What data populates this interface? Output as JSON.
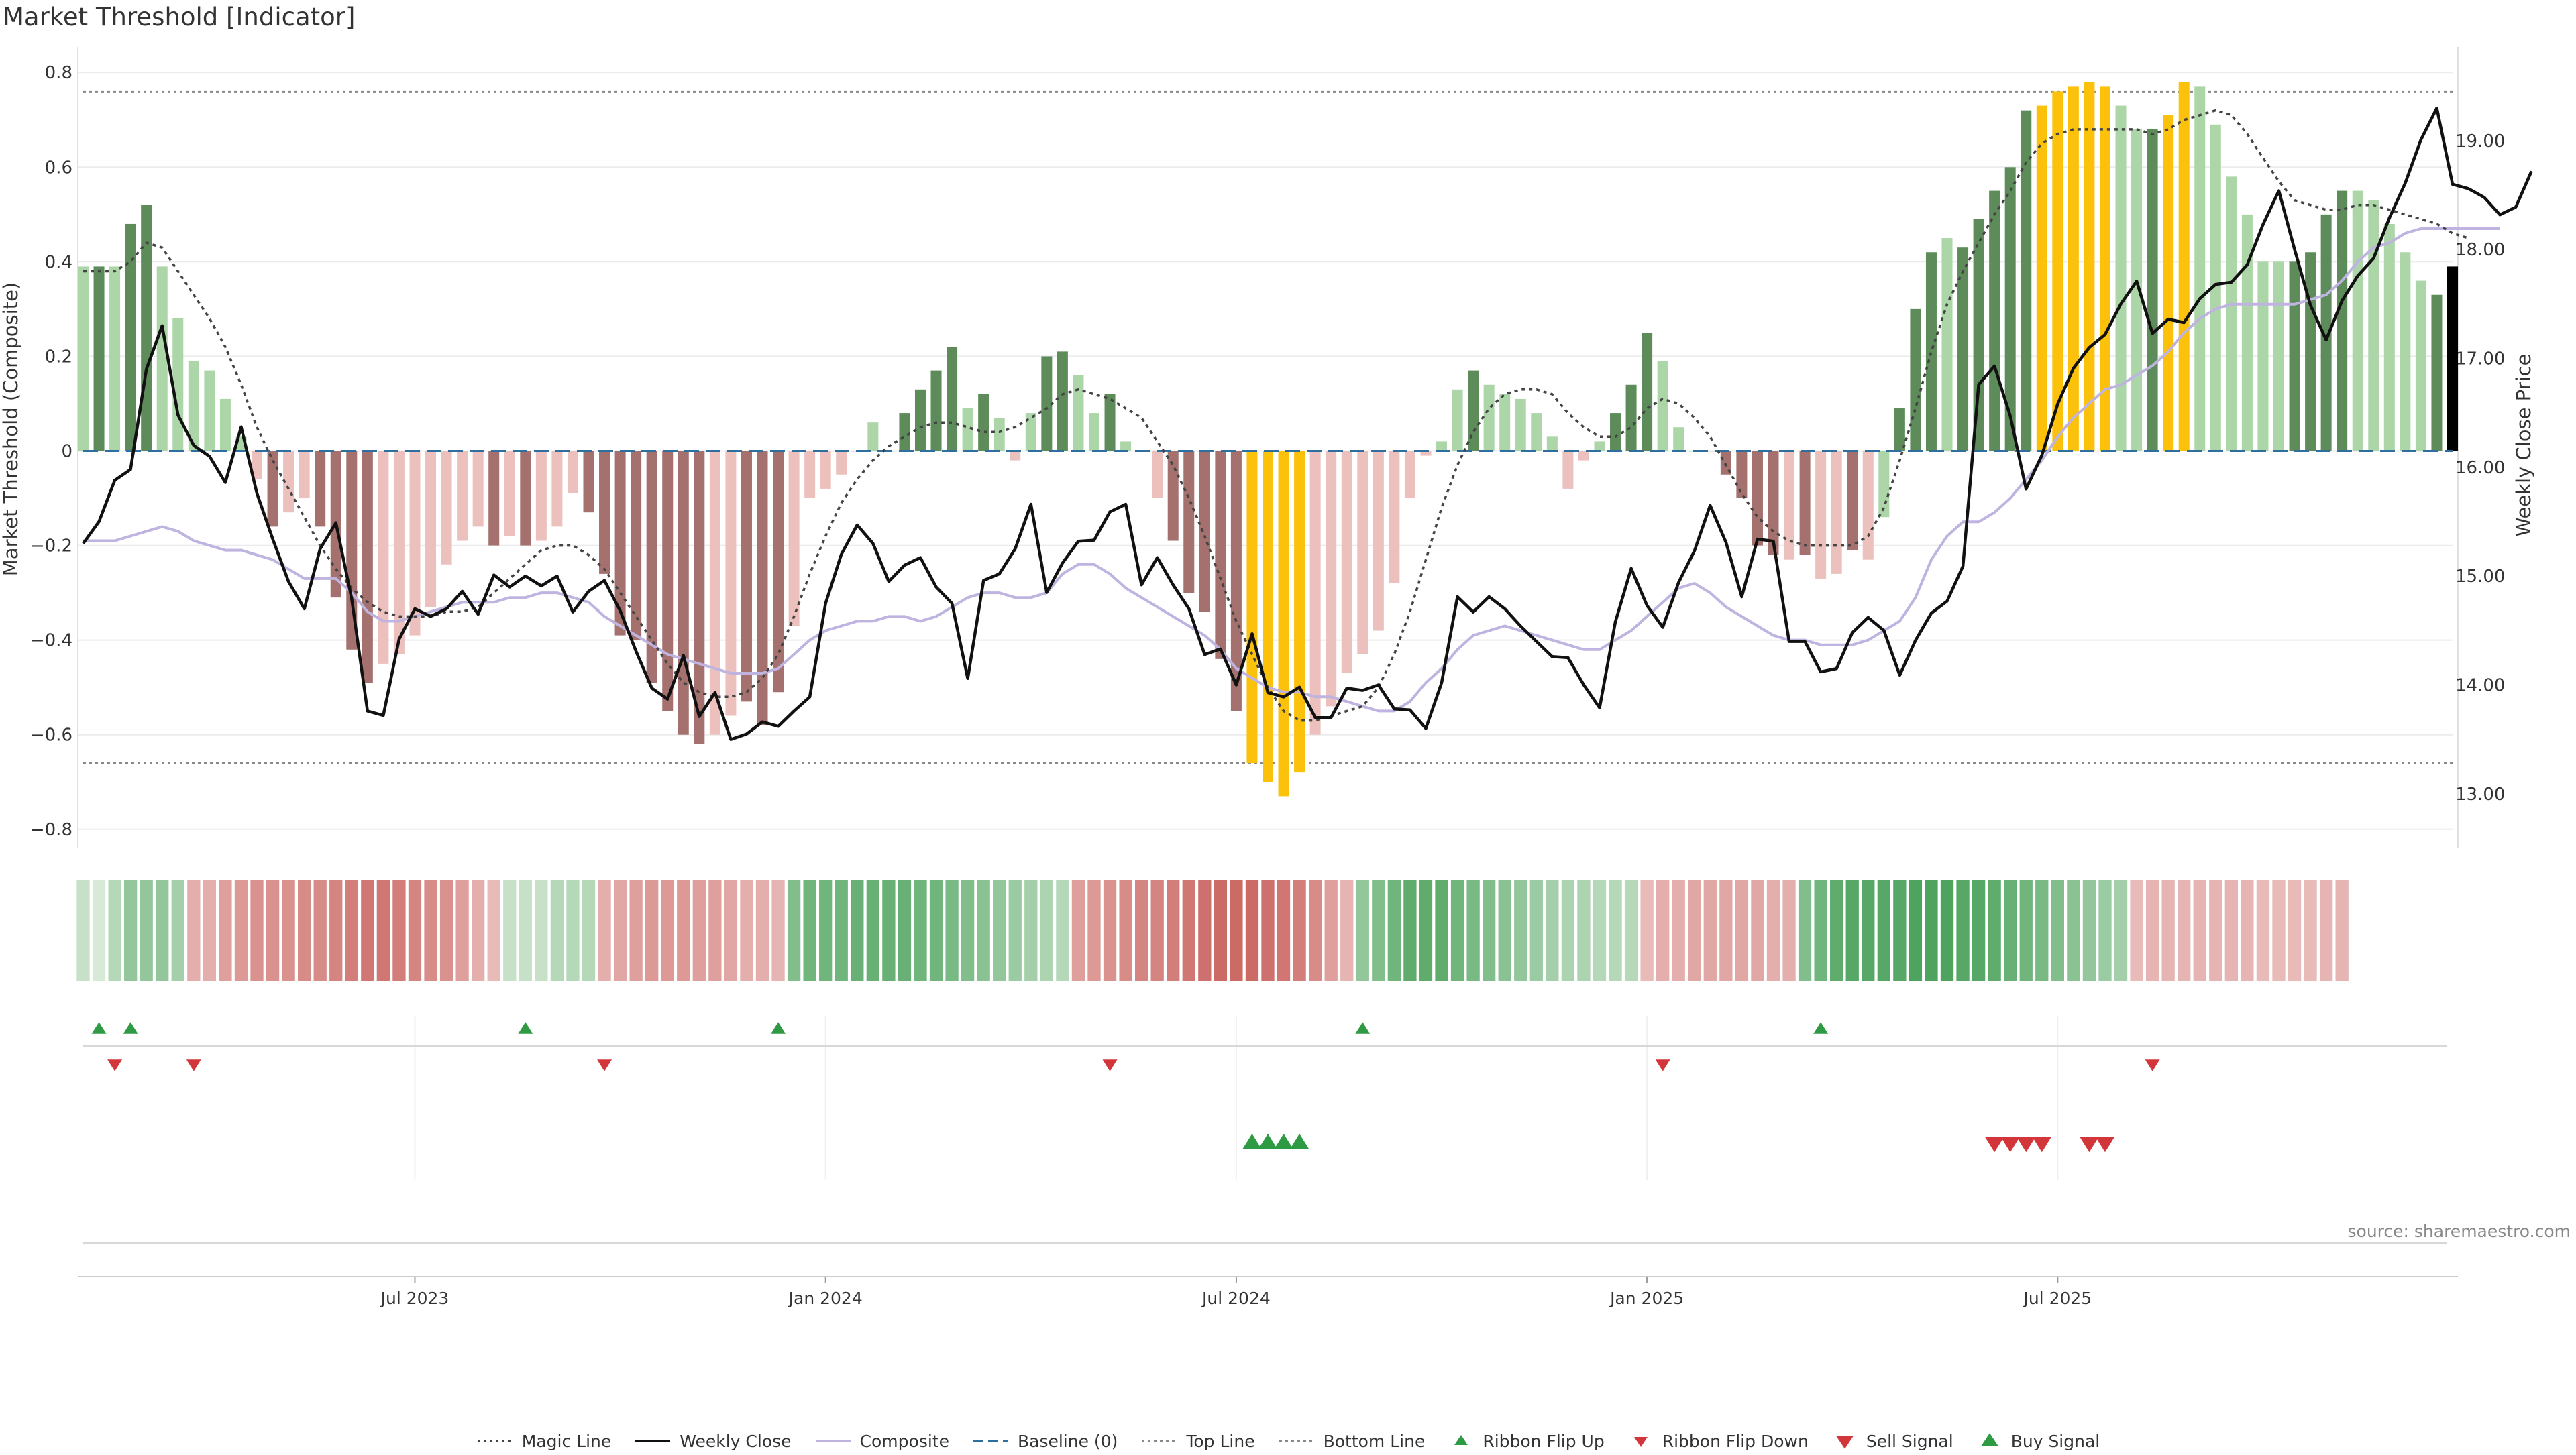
{
  "title": "Market Threshold [Indicator]",
  "source": "source: sharemaestro.com",
  "colors": {
    "strong_pos": "#5d8c5a",
    "weak_pos": "#acd5a8",
    "strong_neg": "#a4716e",
    "weak_neg": "#ecc1bd",
    "extreme": "#fbc10b",
    "magic": "#444444",
    "close": "#111111",
    "composite": "#bfb3e0",
    "baseline": "#2f6fa0",
    "threshold": "#888888",
    "flip_up": "#2e9a44",
    "flip_down": "#d3363a"
  },
  "legend": [
    {
      "key": "magic",
      "label": "Magic Line",
      "icon": "dotted-line"
    },
    {
      "key": "close",
      "label": "Weekly Close",
      "icon": "solid-line"
    },
    {
      "key": "composite",
      "label": "Composite",
      "icon": "solid-line"
    },
    {
      "key": "baseline",
      "label": "Baseline (0)",
      "icon": "dashed-line"
    },
    {
      "key": "top",
      "label": "Top Line",
      "icon": "dotted-line"
    },
    {
      "key": "bottom",
      "label": "Bottom Line",
      "icon": "dotted-line"
    },
    {
      "key": "flip_up",
      "label": "Ribbon Flip Up",
      "icon": "triangle-up"
    },
    {
      "key": "flip_down",
      "label": "Ribbon Flip Down",
      "icon": "triangle-down"
    },
    {
      "key": "sell",
      "label": "Sell Signal",
      "icon": "triangle-down"
    },
    {
      "key": "buy",
      "label": "Buy Signal",
      "icon": "triangle-up"
    }
  ],
  "chart_data": {
    "type": "bar",
    "x_axis": {
      "tick_labels": [
        "Jul 2023",
        "Jan 2024",
        "Jul 2024",
        "Jan 2025",
        "Jul 2025"
      ],
      "tick_week_index": [
        21,
        47,
        73,
        99,
        125
      ]
    },
    "y_left": {
      "label": "Market Threshold (Composite)",
      "ticks": [
        "0.8",
        "0.6",
        "0.4",
        "0.2",
        "0",
        "−0.2",
        "−0.4",
        "−0.6",
        "−0.8"
      ],
      "range": [
        -0.84,
        0.84
      ]
    },
    "y_right": {
      "label": "Weekly Close Price",
      "ticks": [
        "19.00",
        "18.00",
        "17.00",
        "16.00",
        "15.00",
        "14.00",
        "13.00"
      ],
      "range": [
        12.5,
        19.8
      ]
    },
    "top_line": 0.76,
    "bottom_line": -0.66,
    "baseline": 0,
    "bars": [
      0.39,
      0.39,
      0.39,
      0.48,
      0.52,
      0.39,
      0.28,
      0.19,
      0.17,
      0.11,
      0.03,
      -0.06,
      -0.16,
      -0.13,
      -0.1,
      -0.16,
      -0.31,
      -0.42,
      -0.49,
      -0.45,
      -0.43,
      -0.39,
      -0.33,
      -0.24,
      -0.19,
      -0.16,
      -0.2,
      -0.18,
      -0.2,
      -0.19,
      -0.16,
      -0.09,
      -0.13,
      -0.26,
      -0.39,
      -0.4,
      -0.49,
      -0.55,
      -0.6,
      -0.62,
      -0.6,
      -0.56,
      -0.53,
      -0.58,
      -0.51,
      -0.37,
      -0.1,
      -0.08,
      -0.05,
      0.0,
      0.06,
      0.0,
      0.08,
      0.13,
      0.17,
      0.22,
      0.09,
      0.12,
      0.07,
      -0.02,
      0.08,
      0.2,
      0.21,
      0.16,
      0.08,
      0.12,
      0.02,
      0.0,
      -0.1,
      -0.19,
      -0.3,
      -0.34,
      -0.44,
      -0.55,
      -0.66,
      -0.7,
      -0.73,
      -0.68,
      -0.6,
      -0.54,
      -0.47,
      -0.43,
      -0.38,
      -0.28,
      -0.1,
      -0.01,
      0.02,
      0.13,
      0.17,
      0.14,
      0.12,
      0.11,
      0.08,
      0.03,
      -0.08,
      -0.02,
      0.02,
      0.08,
      0.14,
      0.25,
      0.19,
      0.05,
      0.0,
      0.0,
      -0.05,
      -0.1,
      -0.2,
      -0.22,
      -0.23,
      -0.22,
      -0.27,
      -0.26,
      -0.21,
      -0.23,
      -0.14,
      0.09,
      0.3,
      0.42,
      0.45,
      0.43,
      0.49,
      0.55,
      0.6,
      0.72,
      0.73,
      0.76,
      0.77,
      0.78,
      0.77,
      0.73,
      0.68,
      0.68,
      0.71,
      0.78,
      0.77,
      0.69,
      0.58,
      0.5,
      0.4,
      0.4,
      0.4,
      0.42,
      0.5,
      0.55,
      0.55,
      0.53,
      0.48,
      0.42,
      0.36,
      0.33,
      0.39
    ],
    "bar_class": [
      "w",
      "s",
      "w",
      "s",
      "s",
      "w",
      "w",
      "w",
      "w",
      "w",
      "w",
      "wn",
      "sn",
      "wn",
      "wn",
      "sn",
      "sn",
      "sn",
      "sn",
      "wn",
      "wn",
      "wn",
      "wn",
      "wn",
      "wn",
      "wn",
      "sn",
      "wn",
      "sn",
      "wn",
      "wn",
      "wn",
      "sn",
      "sn",
      "sn",
      "sn",
      "sn",
      "sn",
      "sn",
      "sn",
      "wn",
      "wn",
      "sn",
      "sn",
      "sn",
      "wn",
      "wn",
      "wn",
      "wn",
      "wn",
      "w",
      "w",
      "s",
      "s",
      "s",
      "s",
      "w",
      "s",
      "w",
      "wn",
      "w",
      "s",
      "s",
      "w",
      "w",
      "s",
      "w",
      "w",
      "wn",
      "sn",
      "sn",
      "sn",
      "sn",
      "sn",
      "x",
      "x",
      "x",
      "x",
      "wn",
      "wn",
      "wn",
      "wn",
      "wn",
      "wn",
      "wn",
      "wn",
      "w",
      "w",
      "s",
      "w",
      "w",
      "w",
      "w",
      "w",
      "wn",
      "wn",
      "w",
      "s",
      "s",
      "s",
      "w",
      "w",
      "w",
      "wn",
      "sn",
      "sn",
      "sn",
      "sn",
      "wn",
      "sn",
      "wn",
      "wn",
      "sn",
      "wn",
      "w",
      "s",
      "s",
      "s",
      "w",
      "s",
      "s",
      "s",
      "s",
      "s",
      "x",
      "x",
      "x",
      "x",
      "x",
      "w",
      "w",
      "s",
      "x",
      "x",
      "w",
      "w",
      "w",
      "w",
      "w",
      "w",
      "s",
      "s",
      "s",
      "s",
      "w",
      "w",
      "w",
      "w",
      "w",
      "s"
    ],
    "series": [
      {
        "name": "Magic Line",
        "values": [
          0.38,
          0.38,
          0.38,
          0.4,
          0.44,
          0.43,
          0.38,
          0.33,
          0.28,
          0.22,
          0.14,
          0.05,
          -0.02,
          -0.08,
          -0.14,
          -0.2,
          -0.25,
          -0.29,
          -0.32,
          -0.34,
          -0.35,
          -0.35,
          -0.35,
          -0.34,
          -0.34,
          -0.33,
          -0.3,
          -0.27,
          -0.24,
          -0.21,
          -0.2,
          -0.2,
          -0.22,
          -0.25,
          -0.3,
          -0.35,
          -0.4,
          -0.45,
          -0.49,
          -0.51,
          -0.52,
          -0.52,
          -0.51,
          -0.48,
          -0.43,
          -0.35,
          -0.26,
          -0.18,
          -0.11,
          -0.06,
          -0.02,
          0.01,
          0.03,
          0.05,
          0.06,
          0.06,
          0.05,
          0.04,
          0.04,
          0.05,
          0.07,
          0.09,
          0.12,
          0.13,
          0.12,
          0.11,
          0.09,
          0.07,
          0.02,
          -0.03,
          -0.1,
          -0.18,
          -0.27,
          -0.36,
          -0.43,
          -0.5,
          -0.55,
          -0.57,
          -0.57,
          -0.56,
          -0.55,
          -0.54,
          -0.5,
          -0.43,
          -0.34,
          -0.23,
          -0.12,
          -0.03,
          0.04,
          0.09,
          0.12,
          0.13,
          0.13,
          0.12,
          0.08,
          0.05,
          0.03,
          0.03,
          0.05,
          0.09,
          0.11,
          0.1,
          0.07,
          0.03,
          -0.03,
          -0.09,
          -0.14,
          -0.17,
          -0.19,
          -0.2,
          -0.2,
          -0.2,
          -0.2,
          -0.18,
          -0.12,
          -0.02,
          0.09,
          0.21,
          0.31,
          0.38,
          0.44,
          0.5,
          0.55,
          0.61,
          0.65,
          0.67,
          0.68,
          0.68,
          0.68,
          0.68,
          0.68,
          0.67,
          0.68,
          0.7,
          0.71,
          0.72,
          0.71,
          0.67,
          0.62,
          0.57,
          0.53,
          0.52,
          0.51,
          0.51,
          0.52,
          0.52,
          0.51,
          0.5,
          0.49,
          0.48,
          0.46,
          0.45
        ]
      },
      {
        "name": "Weekly Close",
        "values": [
          15.3,
          15.5,
          15.88,
          15.98,
          16.9,
          17.3,
          16.48,
          16.2,
          16.1,
          15.86,
          16.37,
          15.76,
          15.34,
          14.95,
          14.7,
          15.25,
          15.49,
          14.79,
          13.76,
          13.72,
          14.42,
          14.7,
          14.63,
          14.7,
          14.86,
          14.65,
          15.01,
          14.9,
          15.0,
          14.91,
          15.0,
          14.67,
          14.86,
          14.96,
          14.68,
          14.31,
          13.97,
          13.87,
          14.27,
          13.71,
          13.93,
          13.5,
          13.55,
          13.66,
          13.62,
          13.76,
          13.89,
          14.75,
          15.2,
          15.47,
          15.3,
          14.95,
          15.1,
          15.17,
          14.9,
          14.75,
          14.06,
          14.96,
          15.02,
          15.25,
          15.66,
          14.85,
          15.12,
          15.32,
          15.33,
          15.59,
          15.66,
          14.92,
          15.17,
          14.92,
          14.7,
          14.28,
          14.33,
          14.0,
          14.47,
          13.93,
          13.89,
          13.98,
          13.7,
          13.7,
          13.97,
          13.95,
          14.0,
          13.78,
          13.77,
          13.6,
          14.02,
          14.81,
          14.67,
          14.81,
          14.7,
          14.54,
          14.4,
          14.26,
          14.25,
          14.0,
          13.79,
          14.58,
          15.07,
          14.73,
          14.53,
          14.94,
          15.23,
          15.65,
          15.31,
          14.81,
          15.34,
          15.32,
          14.4,
          14.4,
          14.12,
          14.15,
          14.48,
          14.62,
          14.5,
          14.09,
          14.41,
          14.66,
          14.77,
          15.09,
          16.76,
          16.93,
          16.47,
          15.8,
          16.11,
          16.58,
          16.91,
          17.1,
          17.22,
          17.5,
          17.71,
          17.23,
          17.36,
          17.33,
          17.55,
          17.68,
          17.7,
          17.86,
          18.23,
          18.54,
          18.0,
          17.49,
          17.17,
          17.53,
          17.76,
          17.92,
          18.29,
          18.61,
          19.01,
          19.3,
          18.6,
          18.56,
          18.48,
          18.32,
          18.39,
          18.72
        ]
      },
      {
        "name": "Composite",
        "values": [
          -0.19,
          -0.19,
          -0.19,
          -0.18,
          -0.17,
          -0.16,
          -0.17,
          -0.19,
          -0.2,
          -0.21,
          -0.21,
          -0.22,
          -0.23,
          -0.25,
          -0.27,
          -0.27,
          -0.27,
          -0.3,
          -0.34,
          -0.36,
          -0.36,
          -0.35,
          -0.34,
          -0.33,
          -0.32,
          -0.32,
          -0.32,
          -0.31,
          -0.31,
          -0.3,
          -0.3,
          -0.31,
          -0.32,
          -0.35,
          -0.37,
          -0.39,
          -0.41,
          -0.43,
          -0.44,
          -0.45,
          -0.46,
          -0.47,
          -0.47,
          -0.47,
          -0.46,
          -0.43,
          -0.4,
          -0.38,
          -0.37,
          -0.36,
          -0.36,
          -0.35,
          -0.35,
          -0.36,
          -0.35,
          -0.33,
          -0.31,
          -0.3,
          -0.3,
          -0.31,
          -0.31,
          -0.3,
          -0.26,
          -0.24,
          -0.24,
          -0.26,
          -0.29,
          -0.31,
          -0.33,
          -0.35,
          -0.37,
          -0.39,
          -0.42,
          -0.46,
          -0.48,
          -0.5,
          -0.51,
          -0.51,
          -0.52,
          -0.52,
          -0.53,
          -0.54,
          -0.55,
          -0.55,
          -0.53,
          -0.49,
          -0.46,
          -0.42,
          -0.39,
          -0.38,
          -0.37,
          -0.38,
          -0.39,
          -0.4,
          -0.41,
          -0.42,
          -0.42,
          -0.4,
          -0.38,
          -0.35,
          -0.32,
          -0.29,
          -0.28,
          -0.3,
          -0.33,
          -0.35,
          -0.37,
          -0.39,
          -0.4,
          -0.4,
          -0.41,
          -0.41,
          -0.41,
          -0.4,
          -0.38,
          -0.36,
          -0.31,
          -0.23,
          -0.18,
          -0.15,
          -0.15,
          -0.13,
          -0.1,
          -0.06,
          -0.02,
          0.03,
          0.07,
          0.1,
          0.13,
          0.14,
          0.16,
          0.18,
          0.21,
          0.25,
          0.28,
          0.3,
          0.31,
          0.31,
          0.31,
          0.31,
          0.31,
          0.32,
          0.33,
          0.36,
          0.4,
          0.43,
          0.44,
          0.46,
          0.47,
          0.47,
          0.47,
          0.47,
          0.47,
          0.47
        ]
      }
    ],
    "ribbon": [
      0.2,
      0.1,
      0.3,
      0.5,
      0.5,
      0.5,
      0.4,
      -0.4,
      -0.4,
      -0.5,
      -0.55,
      -0.6,
      -0.6,
      -0.6,
      -0.65,
      -0.65,
      -0.7,
      -0.75,
      -0.8,
      -0.8,
      -0.75,
      -0.7,
      -0.65,
      -0.6,
      -0.5,
      -0.4,
      -0.3,
      0.2,
      0.2,
      0.2,
      0.3,
      0.3,
      0.3,
      -0.4,
      -0.45,
      -0.5,
      -0.55,
      -0.55,
      -0.55,
      -0.5,
      -0.5,
      -0.45,
      -0.4,
      -0.4,
      -0.35,
      0.6,
      0.7,
      0.7,
      0.7,
      0.75,
      0.75,
      0.75,
      0.75,
      0.7,
      0.7,
      0.65,
      0.6,
      0.55,
      0.5,
      0.45,
      0.4,
      0.35,
      0.3,
      -0.5,
      -0.55,
      -0.6,
      -0.65,
      -0.7,
      -0.7,
      -0.75,
      -0.8,
      -0.85,
      -0.9,
      -0.9,
      -0.9,
      -0.85,
      -0.8,
      -0.75,
      -0.65,
      -0.5,
      -0.35,
      0.5,
      0.6,
      0.7,
      0.8,
      0.8,
      0.8,
      0.7,
      0.65,
      0.6,
      0.55,
      0.5,
      0.45,
      0.4,
      0.35,
      0.35,
      0.3,
      0.3,
      0.3,
      -0.3,
      -0.4,
      -0.4,
      -0.45,
      -0.45,
      -0.45,
      -0.45,
      -0.45,
      -0.4,
      -0.4,
      0.6,
      0.7,
      0.8,
      0.85,
      0.85,
      0.85,
      0.85,
      0.9,
      0.9,
      0.9,
      0.85,
      0.85,
      0.8,
      0.75,
      0.7,
      0.65,
      0.6,
      0.55,
      0.5,
      0.45,
      0.4,
      -0.3,
      -0.35,
      -0.35,
      -0.35,
      -0.35,
      -0.35,
      -0.35,
      -0.35,
      -0.3,
      -0.3,
      -0.3,
      -0.3,
      -0.35,
      -0.35
    ],
    "ribbon_flip_up": [
      1,
      3,
      28,
      44,
      81,
      110
    ],
    "ribbon_flip_down": [
      2,
      7,
      33,
      65,
      100,
      131
    ],
    "buy_signals": [
      74,
      75,
      76,
      77
    ],
    "sell_signals": [
      121,
      122,
      123,
      124,
      127,
      128
    ]
  }
}
